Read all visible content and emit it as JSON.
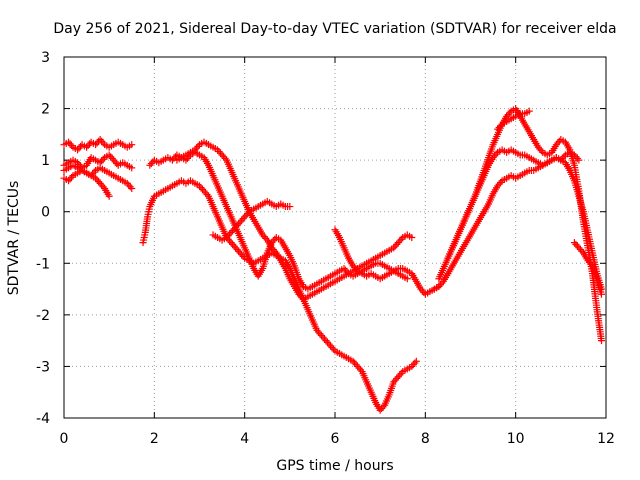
{
  "chart_data": {
    "type": "scatter",
    "title": "Day 256 of 2021, Sidereal Day-to-day VTEC variation (SDTVAR) for receiver elda",
    "xlabel": "GPS time / hours",
    "ylabel": "SDTVAR / TECUs",
    "xlim": [
      0,
      12
    ],
    "ylim": [
      -4,
      3
    ],
    "x_ticks": [
      "0",
      "2",
      "4",
      "6",
      "8",
      "10",
      "12"
    ],
    "y_ticks": [
      "-4",
      "-3",
      "-2",
      "-1",
      "0",
      "1",
      "2",
      "3"
    ],
    "grid": true,
    "marker": "+",
    "color": "#ff0000",
    "series": [
      {
        "x": [
          0,
          0.1,
          0.2,
          0.3,
          0.4,
          0.5,
          0.6,
          0.7,
          0.8,
          0.9,
          1.0,
          1.1,
          1.2,
          1.3,
          1.4,
          1.5
        ],
        "values": [
          1.3,
          1.35,
          1.25,
          1.2,
          1.3,
          1.25,
          1.35,
          1.3,
          1.4,
          1.3,
          1.25,
          1.3,
          1.35,
          1.3,
          1.25,
          1.3
        ]
      },
      {
        "x": [
          0,
          0.1,
          0.2,
          0.3,
          0.4,
          0.5,
          0.6,
          0.7,
          0.8,
          0.9,
          1.0,
          1.1,
          1.2,
          1.3,
          1.4,
          1.5
        ],
        "values": [
          0.9,
          0.95,
          1.0,
          0.95,
          0.85,
          0.9,
          1.05,
          1.0,
          0.95,
          1.05,
          1.1,
          1.0,
          0.9,
          0.95,
          0.9,
          0.85
        ]
      },
      {
        "x": [
          0,
          0.1,
          0.2,
          0.3,
          0.4,
          0.5,
          0.6,
          0.7,
          0.8,
          0.9,
          1.0,
          1.1,
          1.2,
          1.3,
          1.4,
          1.5
        ],
        "values": [
          0.65,
          0.6,
          0.7,
          0.75,
          0.8,
          0.75,
          0.7,
          0.8,
          0.85,
          0.8,
          0.75,
          0.7,
          0.65,
          0.6,
          0.55,
          0.45
        ]
      },
      {
        "x": [
          0,
          0.1,
          0.2,
          0.3,
          0.4,
          0.5,
          0.6,
          0.7,
          0.8,
          0.9,
          1.0
        ],
        "values": [
          0.8,
          0.85,
          0.9,
          0.85,
          0.8,
          0.75,
          0.7,
          0.65,
          0.55,
          0.45,
          0.3
        ]
      },
      {
        "x": [
          1.75,
          1.8,
          1.85,
          1.9,
          2.0,
          2.1,
          2.2,
          2.3,
          2.4,
          2.5,
          2.6,
          2.7,
          2.8,
          2.9,
          3.0,
          3.1,
          3.2,
          3.3,
          3.4,
          3.5,
          3.6,
          3.7,
          3.8,
          3.9,
          4.0,
          4.1,
          4.2,
          4.3,
          4.4,
          4.5,
          4.6,
          4.7,
          4.8,
          4.9,
          5.0,
          5.1,
          5.2,
          5.3,
          5.4,
          5.5,
          5.6,
          5.7,
          5.8,
          5.9,
          6.0,
          6.1,
          6.2,
          6.3,
          6.4,
          6.5,
          6.6,
          6.7,
          6.8,
          6.9,
          7.0,
          7.1,
          7.2,
          7.3,
          7.4,
          7.5,
          7.6,
          7.7,
          7.8
        ],
        "values": [
          -0.6,
          -0.4,
          -0.1,
          0.1,
          0.3,
          0.35,
          0.4,
          0.45,
          0.5,
          0.55,
          0.6,
          0.55,
          0.6,
          0.55,
          0.5,
          0.4,
          0.3,
          0.1,
          -0.1,
          -0.3,
          -0.5,
          -0.6,
          -0.7,
          -0.8,
          -0.9,
          -0.95,
          -1.0,
          -0.95,
          -0.9,
          -0.85,
          -0.8,
          -0.85,
          -0.9,
          -0.95,
          -1.1,
          -1.3,
          -1.5,
          -1.7,
          -1.9,
          -2.1,
          -2.3,
          -2.4,
          -2.5,
          -2.6,
          -2.7,
          -2.75,
          -2.8,
          -2.85,
          -2.9,
          -3.0,
          -3.1,
          -3.3,
          -3.5,
          -3.7,
          -3.85,
          -3.75,
          -3.55,
          -3.3,
          -3.2,
          -3.1,
          -3.05,
          -3.0,
          -2.9
        ]
      },
      {
        "x": [
          1.9,
          2.0,
          2.1,
          2.2,
          2.3,
          2.4,
          2.5,
          2.6,
          2.7,
          2.8,
          2.9,
          3.0,
          3.1,
          3.2,
          3.3,
          3.4,
          3.5,
          3.6,
          3.7,
          3.8,
          3.9,
          4.0,
          4.1,
          4.2,
          4.3,
          4.4,
          4.5,
          4.6,
          4.7,
          4.8,
          4.9,
          5.0,
          5.1,
          5.2,
          5.3,
          5.4,
          5.5,
          5.6,
          5.7,
          5.8,
          5.9,
          6.0,
          6.1,
          6.2,
          6.3,
          6.4,
          6.5,
          6.6,
          6.7,
          6.8,
          6.9,
          7.0,
          7.1,
          7.2,
          7.3,
          7.4,
          7.5,
          7.6,
          7.7,
          7.8,
          7.9,
          8.0,
          8.1,
          8.2,
          8.3
        ],
        "values": [
          0.9,
          1.0,
          0.95,
          1.0,
          1.05,
          1.0,
          1.1,
          1.05,
          1.0,
          1.1,
          1.15,
          1.1,
          1.05,
          0.9,
          0.7,
          0.5,
          0.3,
          0.1,
          -0.1,
          -0.3,
          -0.5,
          -0.7,
          -0.9,
          -1.1,
          -1.25,
          -1.1,
          -0.8,
          -0.6,
          -0.5,
          -0.55,
          -0.7,
          -0.85,
          -1.05,
          -1.3,
          -1.45,
          -1.5,
          -1.45,
          -1.4,
          -1.35,
          -1.3,
          -1.25,
          -1.2,
          -1.15,
          -1.1,
          -1.2,
          -1.25,
          -1.2,
          -1.15,
          -1.1,
          -1.05,
          -1.0,
          -1.0,
          -1.05,
          -1.1,
          -1.15,
          -1.1,
          -1.1,
          -1.15,
          -1.2,
          -1.35,
          -1.5,
          -1.6,
          -1.55,
          -1.5,
          -1.45
        ]
      },
      {
        "x": [
          2.5,
          2.6,
          2.7,
          2.8,
          2.9,
          3.0,
          3.1,
          3.2,
          3.3,
          3.4,
          3.5,
          3.6,
          3.7,
          3.8,
          3.9,
          4.0,
          4.1,
          4.2,
          4.3,
          4.4,
          4.5,
          4.6,
          4.7,
          4.8,
          4.9,
          5.0,
          5.1,
          5.2,
          5.3,
          5.4,
          5.5,
          5.6,
          5.7,
          5.8,
          5.9,
          6.0,
          6.1,
          6.2,
          6.3,
          6.4,
          6.5,
          6.6,
          6.7,
          6.8,
          6.9,
          7.0,
          7.1,
          7.2,
          7.3,
          7.4,
          7.5,
          7.6,
          7.7
        ],
        "values": [
          1.0,
          1.05,
          1.1,
          1.15,
          1.2,
          1.3,
          1.35,
          1.3,
          1.25,
          1.2,
          1.1,
          1.0,
          0.8,
          0.6,
          0.4,
          0.2,
          0.0,
          -0.15,
          -0.3,
          -0.45,
          -0.55,
          -0.7,
          -0.8,
          -0.95,
          -1.1,
          -1.3,
          -1.45,
          -1.6,
          -1.7,
          -1.65,
          -1.6,
          -1.55,
          -1.5,
          -1.45,
          -1.4,
          -1.35,
          -1.3,
          -1.25,
          -1.2,
          -1.15,
          -1.1,
          -1.05,
          -1.0,
          -0.95,
          -0.9,
          -0.85,
          -0.8,
          -0.75,
          -0.7,
          -0.6,
          -0.5,
          -0.45,
          -0.5
        ]
      },
      {
        "x": [
          3.3,
          3.4,
          3.5,
          3.6,
          3.7,
          3.8,
          3.9,
          4.0,
          4.1,
          4.2,
          4.3,
          4.4,
          4.5,
          4.6,
          4.7,
          4.8,
          4.9,
          5.0
        ],
        "values": [
          -0.45,
          -0.5,
          -0.55,
          -0.5,
          -0.4,
          -0.3,
          -0.2,
          -0.1,
          0.0,
          0.05,
          0.1,
          0.15,
          0.2,
          0.15,
          0.1,
          0.15,
          0.1,
          0.1
        ]
      },
      {
        "x": [
          6.0,
          6.1,
          6.2,
          6.3,
          6.4,
          6.5,
          6.6,
          6.7,
          6.8,
          6.9,
          7.0,
          7.1,
          7.2,
          7.3,
          7.4,
          7.5,
          7.6
        ],
        "values": [
          -0.35,
          -0.5,
          -0.7,
          -0.9,
          -1.05,
          -1.15,
          -1.2,
          -1.25,
          -1.2,
          -1.25,
          -1.3,
          -1.25,
          -1.2,
          -1.15,
          -1.2,
          -1.25,
          -1.3
        ]
      },
      {
        "x": [
          8.3,
          8.4,
          8.5,
          8.6,
          8.7,
          8.8,
          8.9,
          9.0,
          9.1,
          9.2,
          9.3,
          9.4,
          9.5,
          9.6,
          9.7,
          9.8,
          9.9,
          10.0,
          10.1,
          10.2,
          10.3,
          10.4,
          10.5,
          10.6,
          10.7,
          10.8,
          10.9,
          11.0,
          11.1,
          11.2,
          11.3,
          11.4
        ],
        "values": [
          -1.3,
          -1.1,
          -0.9,
          -0.7,
          -0.5,
          -0.3,
          -0.1,
          0.1,
          0.3,
          0.5,
          0.7,
          0.9,
          1.05,
          1.15,
          1.2,
          1.15,
          1.2,
          1.15,
          1.1,
          1.1,
          1.05,
          1.0,
          0.95,
          0.9,
          0.95,
          1.0,
          1.05,
          1.0,
          1.1,
          1.15,
          1.1,
          1.0
        ]
      },
      {
        "x": [
          8.2,
          8.3,
          8.4,
          8.5,
          8.6,
          8.7,
          8.8,
          8.9,
          9.0,
          9.1,
          9.2,
          9.3,
          9.4,
          9.5,
          9.6,
          9.7,
          9.8,
          9.9,
          10.0,
          10.1,
          10.2,
          10.3,
          10.4,
          10.5,
          10.6,
          10.7,
          10.8,
          10.9,
          11.0,
          11.1,
          11.2,
          11.3,
          11.4,
          11.5,
          11.6,
          11.7,
          11.8,
          11.9
        ],
        "values": [
          -1.5,
          -1.45,
          -1.35,
          -1.2,
          -1.05,
          -0.9,
          -0.75,
          -0.6,
          -0.45,
          -0.3,
          -0.15,
          0.0,
          0.15,
          0.35,
          0.5,
          0.6,
          0.65,
          0.7,
          0.65,
          0.7,
          0.75,
          0.8,
          0.8,
          0.85,
          0.9,
          0.95,
          1.0,
          1.05,
          1.0,
          0.95,
          0.8,
          0.6,
          0.3,
          0.0,
          -0.4,
          -0.8,
          -1.2,
          -1.5
        ]
      },
      {
        "x": [
          8.5,
          8.6,
          8.7,
          8.8,
          8.9,
          9.0,
          9.1,
          9.2,
          9.3,
          9.4,
          9.5,
          9.6,
          9.7,
          9.8,
          9.9,
          10.0,
          10.1,
          10.2,
          10.3,
          10.4,
          10.5,
          10.6,
          10.7,
          10.8,
          10.9,
          11.0,
          11.1,
          11.2,
          11.3,
          11.4,
          11.5,
          11.6,
          11.7,
          11.8,
          11.9
        ],
        "values": [
          -0.9,
          -0.7,
          -0.5,
          -0.3,
          -0.1,
          0.1,
          0.3,
          0.55,
          0.8,
          1.05,
          1.3,
          1.5,
          1.7,
          1.85,
          1.95,
          2.0,
          1.85,
          1.7,
          1.55,
          1.4,
          1.25,
          1.15,
          1.1,
          1.15,
          1.3,
          1.4,
          1.35,
          1.2,
          0.9,
          0.4,
          -0.2,
          -0.7,
          -1.2,
          -1.9,
          -2.5
        ]
      },
      {
        "x": [
          9.6,
          9.7,
          9.8,
          9.9,
          10.0,
          10.1,
          10.2,
          10.3
        ],
        "values": [
          1.6,
          1.7,
          1.75,
          1.8,
          1.85,
          1.9,
          1.9,
          1.95
        ]
      },
      {
        "x": [
          11.3,
          11.4,
          11.5,
          11.6,
          11.7,
          11.8,
          11.9
        ],
        "values": [
          -0.6,
          -0.7,
          -0.8,
          -0.95,
          -1.05,
          -1.3,
          -1.6
        ]
      }
    ]
  }
}
